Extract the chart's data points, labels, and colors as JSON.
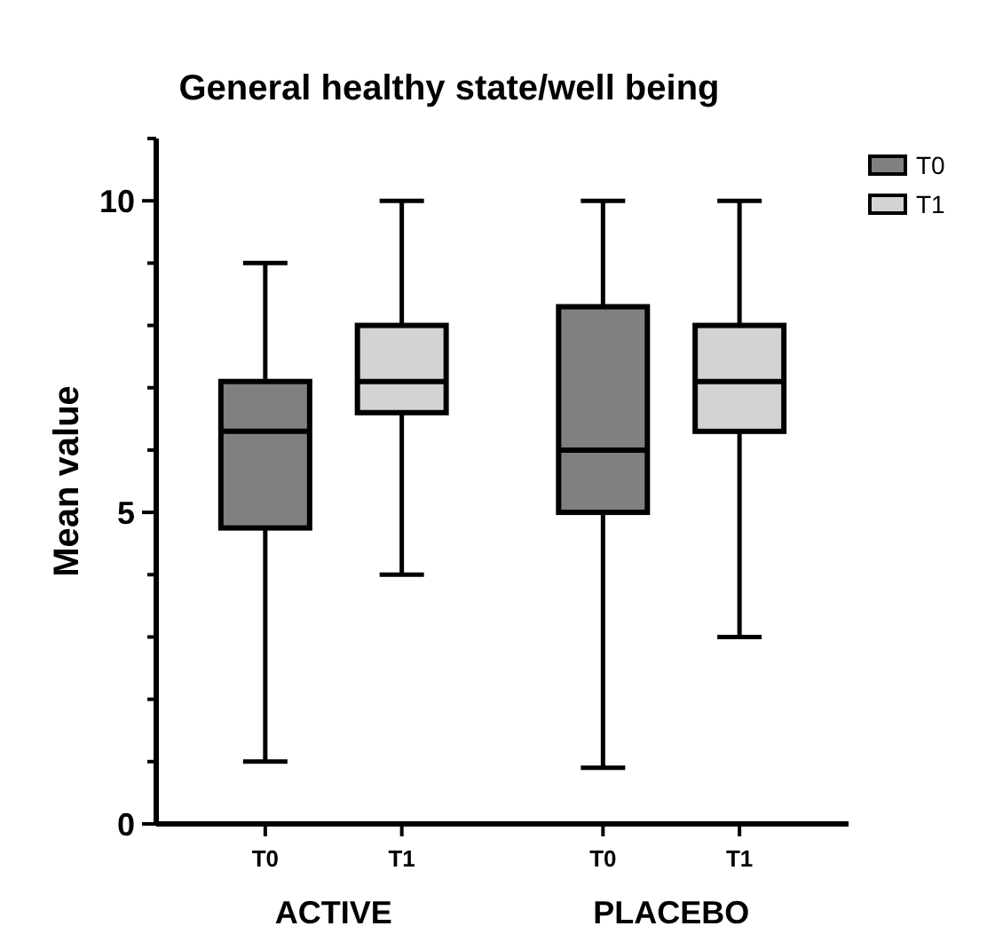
{
  "chart_data": {
    "type": "box",
    "title": "General healthy state/well being",
    "ylabel": "Mean value",
    "categories": [
      "ACTIVE",
      "PLACEBO"
    ],
    "ylim": [
      0,
      11
    ],
    "yticks": [
      0,
      {
        "value": 1,
        "label": null
      },
      {
        "value": 2,
        "label": null
      },
      {
        "value": 3,
        "label": null
      },
      {
        "value": 4,
        "label": null
      },
      5,
      {
        "value": 6,
        "label": null
      },
      {
        "value": 7,
        "label": null
      },
      {
        "value": 8,
        "label": null
      },
      {
        "value": 9,
        "label": null
      },
      10,
      {
        "value": 11,
        "label": null
      }
    ],
    "legend": "top right",
    "grid": false,
    "series": [
      {
        "name": "T0",
        "color": "#808080",
        "boxes": [
          {
            "low": 1.0,
            "q1": 4.75,
            "median": 6.3,
            "q3": 7.1,
            "high": 9.0
          },
          {
            "low": 0.9,
            "q1": 5.0,
            "median": 6.0,
            "q3": 8.3,
            "high": 10.0
          }
        ]
      },
      {
        "name": "T1",
        "color": "#d3d3d3",
        "boxes": [
          {
            "low": 4.0,
            "q1": 6.6,
            "median": 7.1,
            "q3": 8.0,
            "high": 10.0
          },
          {
            "low": 3.0,
            "q1": 6.3,
            "median": 7.1,
            "q3": 8.0,
            "high": 10.0
          }
        ]
      }
    ]
  }
}
